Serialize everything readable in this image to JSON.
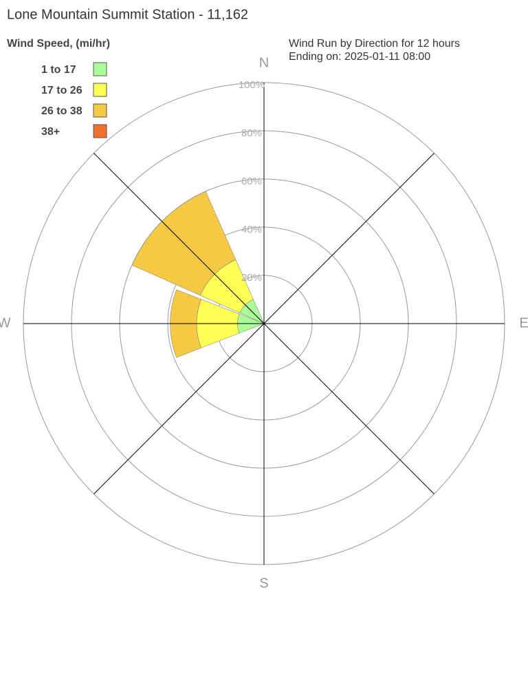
{
  "chart_data": {
    "type": "windrose",
    "title": "Lone Mountain Summit Station - 11,162",
    "subtitle": "Wind Run by Direction for 12 hours",
    "subtitle2": "Ending on: 2025-01-11 08:00",
    "legend_title": "Wind Speed, (mi/hr)",
    "categories": [
      "N",
      null,
      "E",
      null,
      "S",
      null,
      "W",
      null
    ],
    "series": [
      {
        "name": "1 to 17",
        "color": "#aaff99",
        "values": [
          0,
          0,
          0,
          0,
          0,
          0,
          11,
          11
        ]
      },
      {
        "name": "17 to 26",
        "color": "#ffff55",
        "values": [
          0,
          0,
          0,
          0,
          0,
          0,
          17,
          18
        ]
      },
      {
        "name": "26 to 38",
        "color": "#f5c944",
        "values": [
          0,
          0,
          0,
          0,
          0,
          0,
          11,
          31
        ]
      },
      {
        "name": "38+",
        "color": "#f07030",
        "values": [
          0,
          0,
          0,
          0,
          0,
          0,
          0,
          0
        ]
      }
    ],
    "rlim": [
      0,
      100
    ],
    "rticks": [
      {
        "value": 20,
        "label": "20%"
      },
      {
        "value": 40,
        "label": "40%"
      },
      {
        "value": 60,
        "label": "60%"
      },
      {
        "value": 80,
        "label": "80%"
      },
      {
        "value": 100,
        "label": "100%"
      }
    ]
  }
}
